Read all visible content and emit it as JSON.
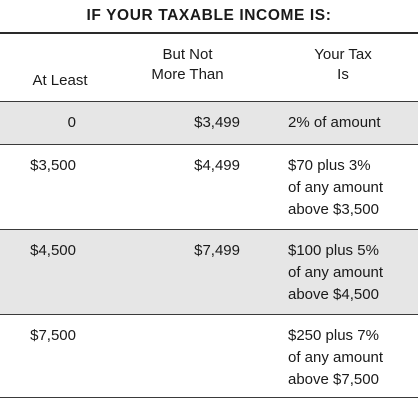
{
  "title": "IF YOUR TAXABLE INCOME IS:",
  "headers": {
    "at_least": "At Least",
    "but_not_line1": "But Not",
    "but_not_line2": "More Than",
    "your_tax_line1": "Your Tax",
    "your_tax_line2": "Is"
  },
  "rows": [
    {
      "at_least": "0",
      "but_not_more_than": "$3,499",
      "tax": [
        "2% of amount"
      ]
    },
    {
      "at_least": "$3,500",
      "but_not_more_than": "$4,499",
      "tax": [
        "$70 plus 3%",
        "of any amount",
        "above $3,500"
      ]
    },
    {
      "at_least": "$4,500",
      "but_not_more_than": "$7,499",
      "tax": [
        "$100 plus 5%",
        "of any amount",
        "above $4,500"
      ]
    },
    {
      "at_least": "$7,500",
      "but_not_more_than": "",
      "tax": [
        "$250 plus 7%",
        "of any amount",
        "above $7,500"
      ]
    }
  ],
  "colors": {
    "shaded_row": "#e6e6e6",
    "rule": "#3a3a3a",
    "text": "#1a1a1a"
  }
}
